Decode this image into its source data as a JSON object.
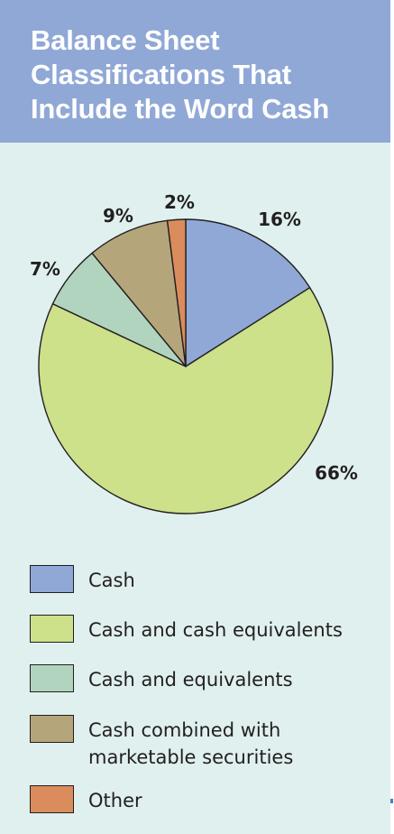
{
  "header": {
    "title_lines": [
      "Balance Sheet",
      "Classifications That",
      "Include the Word Cash"
    ]
  },
  "colors": {
    "header_bg": "#90a8d6",
    "panel_bg": "#dff0ef",
    "text": "#231f20",
    "stroke": "#231f20"
  },
  "chart_data": {
    "type": "pie",
    "title": "Balance Sheet Classifications That Include the Word Cash",
    "start": "12 o'clock, clockwise",
    "slices": [
      {
        "name": "Cash",
        "value": 16,
        "label": "16%",
        "color": "#90a8d6"
      },
      {
        "name": "Cash and cash equivalents",
        "value": 66,
        "label": "66%",
        "color": "#cde08a"
      },
      {
        "name": "Cash and equivalents",
        "value": 7,
        "label": "7%",
        "color": "#b1d4be"
      },
      {
        "name": "Cash combined with marketable securities",
        "value": 9,
        "label": "9%",
        "color": "#b5a57b"
      },
      {
        "name": "Other",
        "value": 2,
        "label": "2%",
        "color": "#db8c5c"
      }
    ]
  },
  "legend": {
    "items": [
      {
        "lines": [
          "Cash"
        ],
        "color": "#90a8d6"
      },
      {
        "lines": [
          "Cash and cash equivalents"
        ],
        "color": "#cde08a"
      },
      {
        "lines": [
          "Cash and equivalents"
        ],
        "color": "#b1d4be"
      },
      {
        "lines": [
          "Cash combined with",
          "marketable securities"
        ],
        "color": "#b5a57b"
      },
      {
        "lines": [
          "Other"
        ],
        "color": "#db8c5c"
      }
    ]
  }
}
